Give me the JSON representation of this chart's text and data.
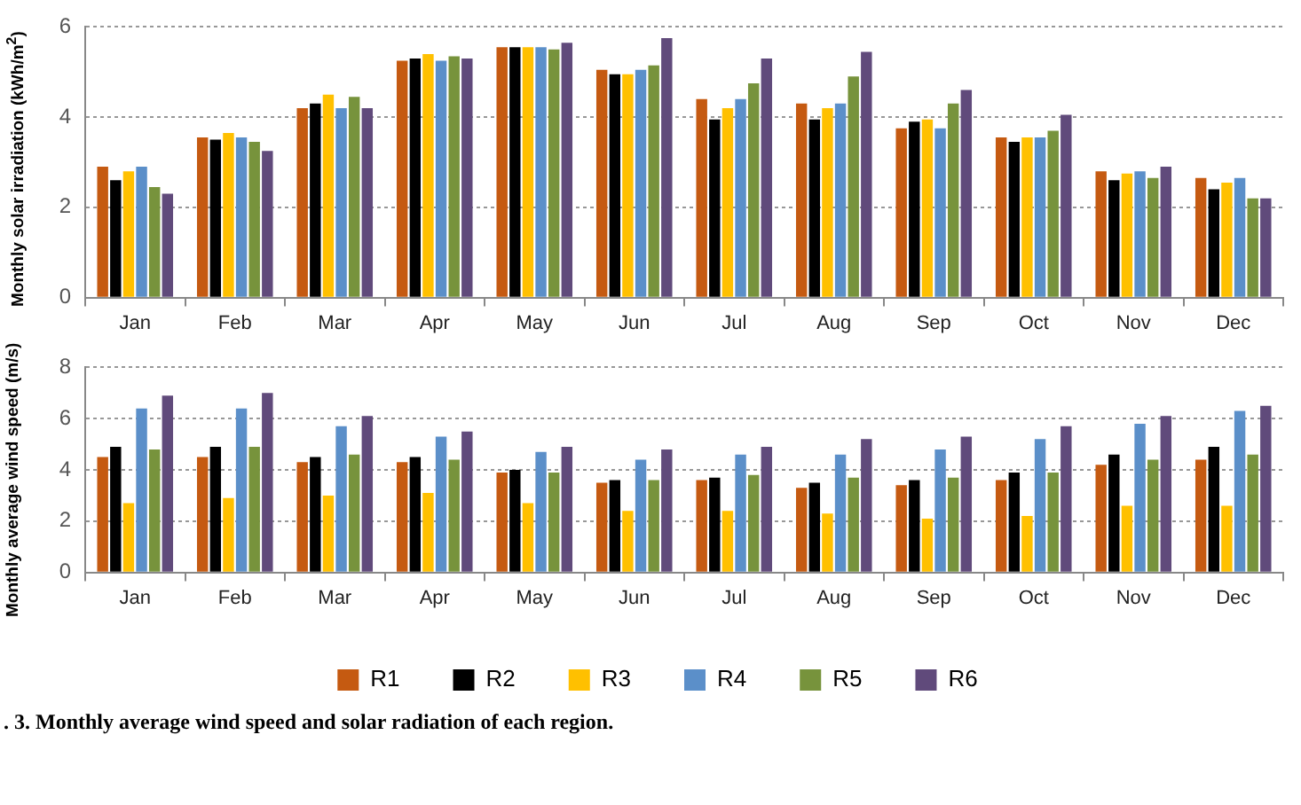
{
  "chart_data": [
    {
      "type": "bar",
      "ylabel": "Monthly solar irradiation (kWh/m$^{2}$)",
      "categories": [
        "Jan",
        "Feb",
        "Mar",
        "Apr",
        "May",
        "Jun",
        "Jul",
        "Aug",
        "Sep",
        "Oct",
        "Nov",
        "Dec"
      ],
      "ylim": [
        0,
        6
      ],
      "yticks": [
        0,
        2,
        4,
        6
      ],
      "grid": "y",
      "legend": false,
      "series": [
        {
          "color": "#c55a11",
          "values": [
            2.9,
            3.55,
            4.2,
            5.25,
            5.55,
            5.05,
            4.4,
            4.3,
            3.75,
            3.55,
            2.8,
            2.65
          ]
        },
        {
          "color": "#000000",
          "values": [
            2.6,
            3.5,
            4.3,
            5.3,
            5.55,
            4.95,
            3.95,
            3.95,
            3.9,
            3.45,
            2.6,
            2.4
          ]
        },
        {
          "color": "#ffc000",
          "values": [
            2.8,
            3.65,
            4.5,
            5.4,
            5.55,
            4.95,
            4.2,
            4.2,
            3.95,
            3.55,
            2.75,
            2.55
          ]
        },
        {
          "color": "#5b8fc9",
          "values": [
            2.9,
            3.55,
            4.2,
            5.25,
            5.55,
            5.05,
            4.4,
            4.3,
            3.75,
            3.55,
            2.8,
            2.65
          ]
        },
        {
          "color": "#77933c",
          "values": [
            2.45,
            3.45,
            4.45,
            5.35,
            5.5,
            5.15,
            4.75,
            4.9,
            4.3,
            3.7,
            2.65,
            2.2
          ]
        },
        {
          "color": "#604a7b",
          "values": [
            2.3,
            3.25,
            4.2,
            5.3,
            5.65,
            5.75,
            5.3,
            5.45,
            4.6,
            4.05,
            2.9,
            2.2
          ]
        }
      ]
    },
    {
      "type": "bar",
      "ylabel": "Monthly average wind speed (m/s)",
      "categories": [
        "Jan",
        "Feb",
        "Mar",
        "Apr",
        "May",
        "Jun",
        "Jul",
        "Aug",
        "Sep",
        "Oct",
        "Nov",
        "Dec"
      ],
      "ylim": [
        0,
        8
      ],
      "yticks": [
        0,
        2,
        4,
        6,
        8
      ],
      "grid": "y",
      "legend": "bottom",
      "annotations": [
        ". 3. Monthly average wind speed and solar radiation of each region."
      ],
      "series": [
        {
          "name": "R1",
          "color": "#c55a11",
          "values": [
            4.5,
            4.5,
            4.3,
            4.3,
            3.9,
            3.5,
            3.6,
            3.3,
            3.4,
            3.6,
            4.2,
            4.4
          ]
        },
        {
          "name": "R2",
          "color": "#000000",
          "values": [
            4.9,
            4.9,
            4.5,
            4.5,
            4.0,
            3.6,
            3.7,
            3.5,
            3.6,
            3.9,
            4.6,
            4.9
          ]
        },
        {
          "name": "R3",
          "color": "#ffc000",
          "values": [
            2.7,
            2.9,
            3.0,
            3.1,
            2.7,
            2.4,
            2.4,
            2.3,
            2.1,
            2.2,
            2.6,
            2.6
          ]
        },
        {
          "name": "R4",
          "color": "#5b8fc9",
          "values": [
            6.4,
            6.4,
            5.7,
            5.3,
            4.7,
            4.4,
            4.6,
            4.6,
            4.8,
            5.2,
            5.8,
            6.3
          ]
        },
        {
          "name": "R5",
          "color": "#77933c",
          "values": [
            4.8,
            4.9,
            4.6,
            4.4,
            3.9,
            3.6,
            3.8,
            3.7,
            3.7,
            3.9,
            4.4,
            4.6
          ]
        },
        {
          "name": "R6",
          "color": "#604a7b",
          "values": [
            6.9,
            7.0,
            6.1,
            5.5,
            4.9,
            4.8,
            4.9,
            5.2,
            5.3,
            5.7,
            6.1,
            6.5
          ]
        }
      ]
    }
  ]
}
